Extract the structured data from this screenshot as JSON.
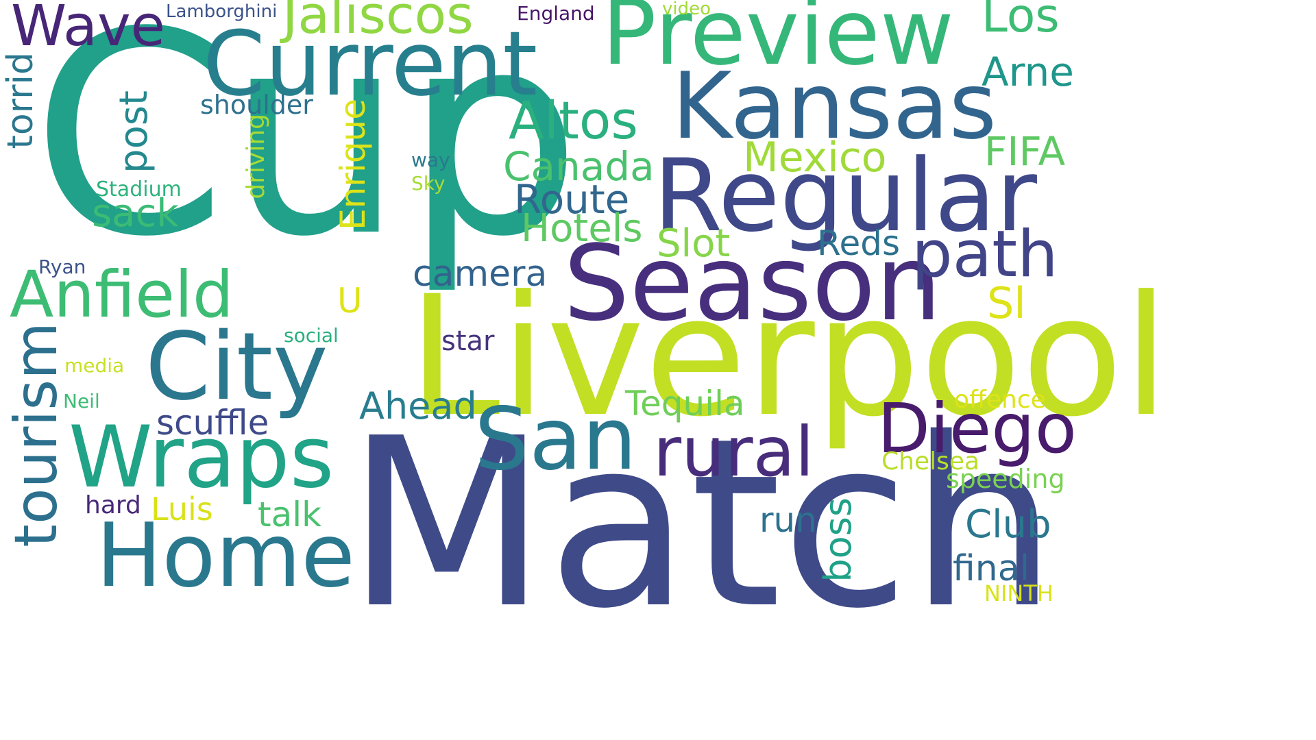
{
  "words": [
    {
      "text": "Cup",
      "color": "#21a08a"
    },
    {
      "text": "Match",
      "color": "#3f4a89"
    },
    {
      "text": "Liverpool",
      "color": "#c2df23"
    },
    {
      "text": "Season",
      "color": "#472f7d"
    },
    {
      "text": "Regular",
      "color": "#3f4889"
    },
    {
      "text": "Kansas",
      "color": "#32658e"
    },
    {
      "text": "Preview",
      "color": "#35b779"
    },
    {
      "text": "Current",
      "color": "#277f8e"
    },
    {
      "text": "City",
      "color": "#2a778e"
    },
    {
      "text": "Wraps",
      "color": "#20a386"
    },
    {
      "text": "Home",
      "color": "#2a788e"
    },
    {
      "text": "San",
      "color": "#2a788e"
    },
    {
      "text": "Diego",
      "color": "#481b6d"
    },
    {
      "text": "rural",
      "color": "#472d7b"
    },
    {
      "text": "path",
      "color": "#414487"
    },
    {
      "text": "Anfield",
      "color": "#3dbc74"
    },
    {
      "text": "tourism",
      "color": "#2d708e"
    },
    {
      "text": "Wave",
      "color": "#482677"
    },
    {
      "text": "Jaliscos",
      "color": "#90d743"
    },
    {
      "text": "Altos",
      "color": "#2ab07f"
    },
    {
      "text": "Los",
      "color": "#3dbc74"
    },
    {
      "text": "Arne",
      "color": "#1f968b"
    },
    {
      "text": "FIFA",
      "color": "#5ec962"
    },
    {
      "text": "Mexico",
      "color": "#a0da39"
    },
    {
      "text": "Canada",
      "color": "#4ac16d"
    },
    {
      "text": "Route",
      "color": "#31678e"
    },
    {
      "text": "Hotels",
      "color": "#5ec962"
    },
    {
      "text": "Slot",
      "color": "#86d549"
    },
    {
      "text": "Reds",
      "color": "#2c718e"
    },
    {
      "text": "camera",
      "color": "#33638d"
    },
    {
      "text": "Enrique",
      "color": "#dde318"
    },
    {
      "text": "post",
      "color": "#23898e"
    },
    {
      "text": "sack",
      "color": "#3bbb75"
    },
    {
      "text": "torrid",
      "color": "#2a778e"
    },
    {
      "text": "shoulder",
      "color": "#2d718e"
    },
    {
      "text": "driving",
      "color": "#a8db34"
    },
    {
      "text": "way",
      "color": "#2a788e"
    },
    {
      "text": "Sky",
      "color": "#a8db34"
    },
    {
      "text": "Stadium",
      "color": "#2eb37c"
    },
    {
      "text": "Ryan",
      "color": "#3b528b"
    },
    {
      "text": "U",
      "color": "#dde318"
    },
    {
      "text": "Sl",
      "color": "#dde318"
    },
    {
      "text": "star",
      "color": "#46337e"
    },
    {
      "text": "social",
      "color": "#29af7f"
    },
    {
      "text": "media",
      "color": "#c8e020"
    },
    {
      "text": "Neil",
      "color": "#3dbc74"
    },
    {
      "text": "scuffle",
      "color": "#3e4a89"
    },
    {
      "text": "Ahead",
      "color": "#287d8e"
    },
    {
      "text": "Tequila",
      "color": "#6ece58"
    },
    {
      "text": "offence",
      "color": "#dde318"
    },
    {
      "text": "Chelsea",
      "color": "#b8de29"
    },
    {
      "text": "speeding",
      "color": "#7ad151"
    },
    {
      "text": "Luis",
      "color": "#d8e219"
    },
    {
      "text": "talk",
      "color": "#4ac16d"
    },
    {
      "text": "hard",
      "color": "#482878"
    },
    {
      "text": "run",
      "color": "#2d718e"
    },
    {
      "text": "boss",
      "color": "#1fa187"
    },
    {
      "text": "Club",
      "color": "#2a778e"
    },
    {
      "text": "final",
      "color": "#31688e"
    },
    {
      "text": "NINTH",
      "color": "#d8e219"
    },
    {
      "text": "Lamborghini",
      "color": "#3b528b"
    },
    {
      "text": "England",
      "color": "#481567"
    },
    {
      "text": "video",
      "color": "#a0da39"
    }
  ]
}
